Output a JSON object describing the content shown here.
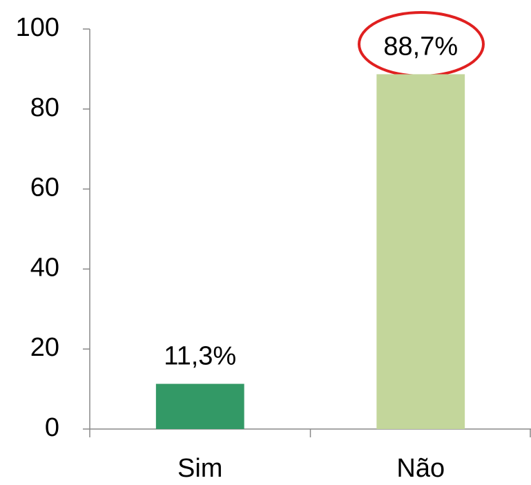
{
  "chart_data": {
    "type": "bar",
    "categories": [
      "Sim",
      "Não"
    ],
    "values": [
      11.3,
      88.7
    ],
    "value_labels": [
      "11,3%",
      "88,7%"
    ],
    "colors": [
      "#339966",
      "#c3d69b"
    ],
    "ylim": [
      0,
      100
    ],
    "yticks": [
      0,
      20,
      40,
      60,
      80,
      100
    ],
    "grid": false
  }
}
